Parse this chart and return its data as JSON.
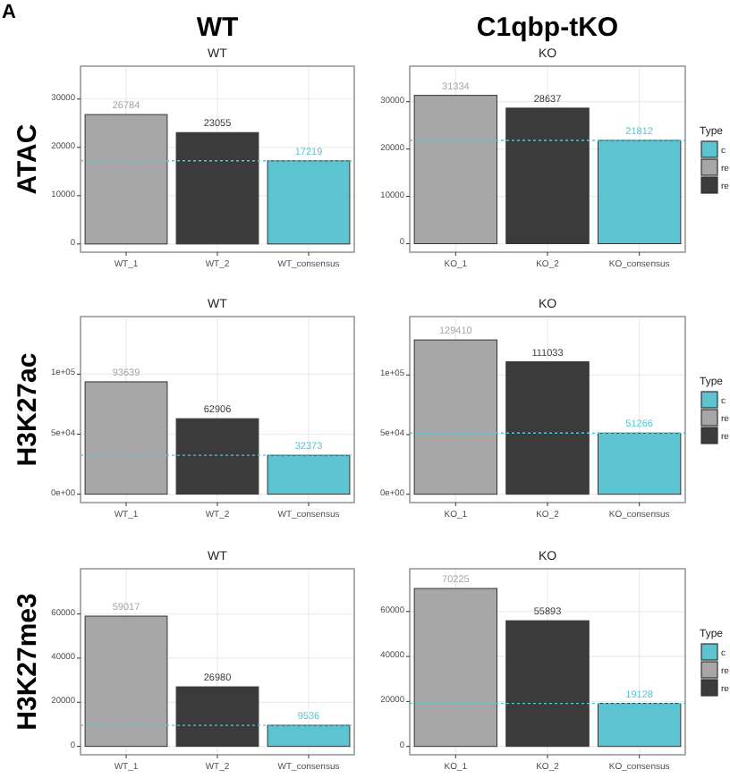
{
  "chart_data": [
    {
      "type": "bar",
      "title": "WT",
      "ylabel": "ATAC",
      "annotations": [
        "A",
        "WT"
      ],
      "categories": [
        "WT_1",
        "WT_2",
        "WT_consensus"
      ],
      "series": [
        {
          "color": "#5bc4d0",
          "values": [
            null,
            null,
            17219
          ]
        },
        {
          "color": "#a6a6a6",
          "values": [
            26784,
            null,
            null
          ]
        },
        {
          "color": "#3b3b3b",
          "values": [
            null,
            23055,
            null
          ]
        }
      ],
      "ylim": [
        -1700,
        36800
      ],
      "yticks": [
        0,
        10000,
        20000,
        30000
      ],
      "grid": true,
      "data_labels": true,
      "ref_lines": [
        {
          "axis": "y",
          "value": 17219,
          "color": "#5bc4d0",
          "line_style": "dotted"
        }
      ]
    },
    {
      "type": "bar",
      "title": "KO",
      "annotations": [
        "C1qbp-tKO"
      ],
      "categories": [
        "KO_1",
        "KO_2",
        "KO_consensus"
      ],
      "series": [
        {
          "name": "c",
          "color": "#5bc4d0",
          "values": [
            null,
            null,
            21812
          ]
        },
        {
          "name": "re",
          "color": "#a6a6a6",
          "values": [
            31334,
            null,
            null
          ]
        },
        {
          "name": "re",
          "color": "#3b3b3b",
          "values": [
            null,
            28637,
            null
          ]
        }
      ],
      "ylim": [
        -1800,
        37500
      ],
      "yticks": [
        0,
        10000,
        20000,
        30000
      ],
      "grid": true,
      "data_labels": true,
      "legend": "right",
      "legend_title": "Type",
      "ref_lines": [
        {
          "axis": "y",
          "value": 21812,
          "color": "#5bc4d0",
          "line_style": "dotted"
        }
      ]
    },
    {
      "type": "bar",
      "title": "WT",
      "ylabel": "H3K27ac",
      "categories": [
        "WT_1",
        "WT_2",
        "WT_consensus"
      ],
      "series": [
        {
          "color": "#5bc4d0",
          "values": [
            null,
            null,
            32373
          ]
        },
        {
          "color": "#a6a6a6",
          "values": [
            93639,
            null,
            null
          ]
        },
        {
          "color": "#3b3b3b",
          "values": [
            null,
            62906,
            null
          ]
        }
      ],
      "ylim": [
        -7000,
        148000
      ],
      "yticks": [
        {
          "value": 0,
          "label": "0e+00"
        },
        {
          "value": 50000,
          "label": "5e+04"
        },
        {
          "value": 100000,
          "label": "1e+05"
        }
      ],
      "grid": true,
      "data_labels": true,
      "ref_lines": [
        {
          "axis": "y",
          "value": 32373,
          "color": "#5bc4d0",
          "line_style": "dotted"
        }
      ]
    },
    {
      "type": "bar",
      "title": "KO",
      "categories": [
        "KO_1",
        "KO_2",
        "KO_consensus"
      ],
      "series": [
        {
          "name": "c",
          "color": "#5bc4d0",
          "values": [
            null,
            null,
            51266
          ]
        },
        {
          "name": "re",
          "color": "#a6a6a6",
          "values": [
            129410,
            null,
            null
          ]
        },
        {
          "name": "re",
          "color": "#3b3b3b",
          "values": [
            null,
            111033,
            null
          ]
        }
      ],
      "ylim": [
        -7000,
        149000
      ],
      "yticks": [
        {
          "value": 0,
          "label": "0e+00"
        },
        {
          "value": 50000,
          "label": "5e+04"
        },
        {
          "value": 100000,
          "label": "1e+05"
        }
      ],
      "grid": true,
      "data_labels": true,
      "legend": "right",
      "legend_title": "Type",
      "ref_lines": [
        {
          "axis": "y",
          "value": 51266,
          "color": "#5bc4d0",
          "line_style": "dotted"
        }
      ]
    },
    {
      "type": "bar",
      "title": "WT",
      "ylabel": "H3K27me3",
      "categories": [
        "WT_1",
        "WT_2",
        "WT_consensus"
      ],
      "series": [
        {
          "color": "#5bc4d0",
          "values": [
            null,
            null,
            9536
          ]
        },
        {
          "color": "#a6a6a6",
          "values": [
            59017,
            null,
            null
          ]
        },
        {
          "color": "#3b3b3b",
          "values": [
            null,
            26980,
            null
          ]
        }
      ],
      "ylim": [
        -3800,
        80500
      ],
      "yticks": [
        0,
        20000,
        40000,
        60000
      ],
      "grid": true,
      "data_labels": true,
      "ref_lines": [
        {
          "axis": "y",
          "value": 9536,
          "color": "#5bc4d0",
          "line_style": "dotted"
        }
      ]
    },
    {
      "type": "bar",
      "title": "KO",
      "categories": [
        "KO_1",
        "KO_2",
        "KO_consensus"
      ],
      "series": [
        {
          "name": "c",
          "color": "#5bc4d0",
          "values": [
            null,
            null,
            19128
          ]
        },
        {
          "name": "re",
          "color": "#a6a6a6",
          "values": [
            70225,
            null,
            null
          ]
        },
        {
          "name": "re",
          "color": "#3b3b3b",
          "values": [
            null,
            55893,
            null
          ]
        }
      ],
      "ylim": [
        -3700,
        79000
      ],
      "yticks": [
        0,
        20000,
        40000,
        60000
      ],
      "grid": true,
      "data_labels": true,
      "legend": "right",
      "legend_title": "Type",
      "ref_lines": [
        {
          "axis": "y",
          "value": 19128,
          "color": "#5bc4d0",
          "line_style": "dotted"
        }
      ]
    }
  ]
}
